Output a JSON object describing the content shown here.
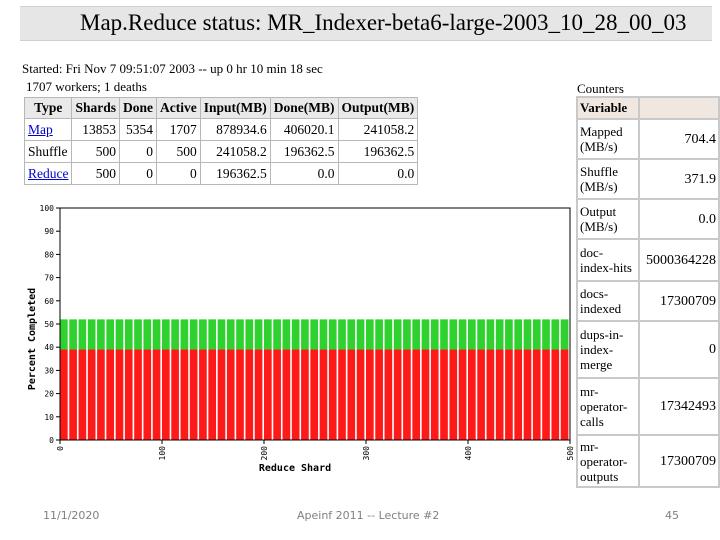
{
  "title": "Map.Reduce status: MR_Indexer-beta6-large-2003_10_28_00_03",
  "status": {
    "started": "Started: Fri Nov 7 09:51:07 2003 -- up 0 hr 10 min 18 sec",
    "workers": "1707 workers; 1 deaths"
  },
  "phase_table": {
    "headers": [
      "Type",
      "Shards",
      "Done",
      "Active",
      "Input(MB)",
      "Done(MB)",
      "Output(MB)"
    ],
    "rows": [
      {
        "type": "Map",
        "shards": "13853",
        "done": "5354",
        "active": "1707",
        "input": "878934.6",
        "done_mb": "406020.1",
        "output": "241058.2"
      },
      {
        "type": "Shuffle",
        "shards": "500",
        "done": "0",
        "active": "500",
        "input": "241058.2",
        "done_mb": "196362.5",
        "output": "196362.5"
      },
      {
        "type": "Reduce",
        "shards": "500",
        "done": "0",
        "active": "0",
        "input": "196362.5",
        "done_mb": "0.0",
        "output": "0.0"
      }
    ]
  },
  "counters": {
    "title": "Counters",
    "header": "Variable",
    "rows": [
      {
        "name": "Mapped (MB/s)",
        "value": "704.4"
      },
      {
        "name": "Shuffle (MB/s)",
        "value": "371.9"
      },
      {
        "name": "Output (MB/s)",
        "value": "0.0"
      },
      {
        "name": "doc-index-hits",
        "value": "5000364228"
      },
      {
        "name": "docs-indexed",
        "value": "17300709"
      },
      {
        "name": "dups-in-index-merge",
        "value": "0"
      },
      {
        "name": "mr-operator-calls",
        "value": "17342493"
      },
      {
        "name": "mr-operator-outputs",
        "value": "17300709"
      }
    ]
  },
  "chart_data": {
    "type": "bar",
    "xlabel": "Reduce Shard",
    "ylabel": "Percent Completed",
    "xlim": [
      0,
      500
    ],
    "ylim": [
      0,
      100
    ],
    "x_ticks": [
      "0",
      "100",
      "200",
      "300",
      "400",
      "500"
    ],
    "y_ticks": [
      "0",
      "10",
      "20",
      "30",
      "40",
      "50",
      "60",
      "70",
      "80",
      "90",
      "100"
    ],
    "bar_count": 500,
    "series": [
      {
        "values_all": 39,
        "color": "#ff1a1a"
      },
      {
        "values_all": 13,
        "color": "#2ed12e"
      }
    ]
  },
  "footer": {
    "date": "11/1/2020",
    "course": "Apeinf 2011 -- Lecture #2",
    "page": "45"
  }
}
